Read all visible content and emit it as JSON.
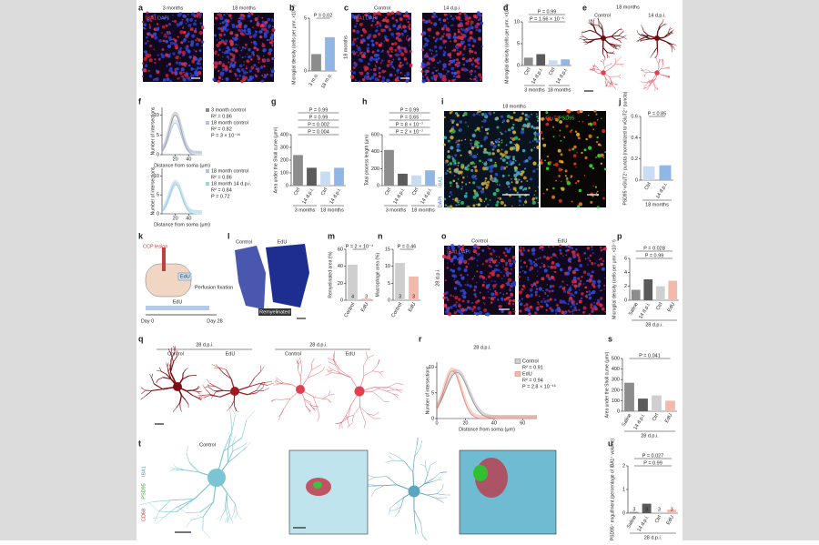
{
  "panels": {
    "a": {
      "label": "a",
      "texts": [
        "3 months",
        "18 months",
        "IBA1",
        "DAPI"
      ]
    },
    "b": {
      "label": "b",
      "ylabel": "Microglial density (cells per μm², ×10⁻³)",
      "pvalues": [
        "P = 0.02"
      ],
      "categories": [
        "3 m.o.",
        "18 m.o."
      ],
      "values": [
        1.6,
        3.2
      ],
      "colors": [
        "#8c8c8c",
        "#8fb6e4"
      ],
      "ylim": [
        0,
        5
      ],
      "yticks": [
        0,
        5
      ]
    },
    "c": {
      "label": "c",
      "texts": [
        "Control",
        "14 d.p.i.",
        "IBA1",
        "DAPI",
        "18 months"
      ]
    },
    "d": {
      "label": "d",
      "ylabel": "Microglial density (cells per μm², ×10⁻³)",
      "pvalues": [
        "P = 1.56 × 10⁻⁵",
        "P = 0.99"
      ],
      "categories": [
        "Ctrl",
        "14 d.p.i.",
        "Ctrl",
        "14 d.p.i."
      ],
      "values": [
        1.8,
        2.6,
        1.2,
        1.4
      ],
      "colors": [
        "#8c8c8c",
        "#5b5b5b",
        "#c9dcf2",
        "#8fb6e4"
      ],
      "ylim": [
        0,
        10
      ],
      "yticks": [
        0,
        5,
        10
      ],
      "groups": [
        "3 months",
        "18 months"
      ]
    },
    "e": {
      "label": "e",
      "texts": [
        "18 months",
        "Control",
        "14 d.p.i."
      ]
    },
    "f": {
      "label": "f",
      "legend_top": [
        "3 month control",
        "R² = 0.86",
        "18 month control",
        "R² = 0.82",
        "P = 3 × 10⁻¹⁶"
      ],
      "legend_bottom": [
        "18 month control",
        "R² = 0.86",
        "18 month 14 d.p.i.",
        "R² = 0.84",
        "P = 0.72"
      ],
      "ylabel": "Number of intersections",
      "xlabel": "Distance from soma (μm)",
      "xticks": [
        20,
        40
      ],
      "xlim": [
        0,
        60
      ],
      "yticks": [
        0,
        5,
        10
      ],
      "ylim": [
        0,
        12
      ]
    },
    "g": {
      "label": "g",
      "ylabel": "Area under the Sholl curve (μm²)",
      "pvalues": [
        "P = 0.004",
        "P = 0.002",
        "P = 0.99",
        "P = 0.99"
      ],
      "categories": [
        "Ctrl",
        "14 d.p.i.",
        "Ctrl",
        "14 d.p.i."
      ],
      "values": [
        240,
        140,
        110,
        140
      ],
      "colors": [
        "#8c8c8c",
        "#5b5b5b",
        "#c9dcf2",
        "#8fb6e4"
      ],
      "ylim": [
        0,
        400
      ],
      "yticks": [
        0,
        100,
        200,
        300,
        400
      ],
      "groups": [
        "3 months",
        "18 months"
      ]
    },
    "h": {
      "label": "h",
      "ylabel": "Total process length (μm)",
      "pvalues": [
        "P = 2 × 10⁻⁷",
        "P = 8 × 10⁻⁷",
        "P = 0.65",
        "P = 0.99"
      ],
      "categories": [
        "Ctrl",
        "14 d.p.i.",
        "Ctrl",
        "14 d.p.i."
      ],
      "values": [
        420,
        140,
        120,
        180
      ],
      "colors": [
        "#8c8c8c",
        "#5b5b5b",
        "#c9dcf2",
        "#8fb6e4"
      ],
      "ylim": [
        0,
        600
      ],
      "yticks": [
        0,
        200,
        400,
        600
      ],
      "groups": [
        "3 months",
        "18 months"
      ]
    },
    "i": {
      "label": "i",
      "texts": [
        "18 months",
        "vGluT2",
        "PSD95",
        "DAPI",
        "IBA1"
      ]
    },
    "j": {
      "label": "j",
      "ylabel": "PSD95⁺vGluT2⁺ puncta (normalized to vGluT2⁺ puncta)",
      "pvalues": [
        "P = 0.85"
      ],
      "categories": [
        "Ctrl",
        "14 d.p.i."
      ],
      "values": [
        0.13,
        0.14
      ],
      "colors": [
        "#c9dcf2",
        "#8fb6e4"
      ],
      "ylim": [
        0,
        0.6
      ],
      "yticks": [
        0,
        0.2,
        0.4,
        0.6
      ],
      "groups": [
        "18 months"
      ]
    },
    "k": {
      "label": "k",
      "texts": [
        "CCP lesion",
        "EdU",
        "Perfusion fixation",
        "EdU",
        "Day 0",
        "Day 28"
      ]
    },
    "l": {
      "label": "l",
      "texts": [
        "Control",
        "EdU",
        "Remyelinated"
      ]
    },
    "m": {
      "label": "m",
      "ylabel": "Remyelinated area (%)",
      "pvalues": [
        "P = 2 × 10⁻⁴"
      ],
      "categories": [
        "Control",
        "EdU"
      ],
      "values": [
        42,
        2
      ],
      "colors": [
        "#cfcfcf",
        "#f4b9ad"
      ],
      "ylim": [
        0,
        60
      ],
      "yticks": [
        0,
        20,
        40,
        60
      ],
      "n": [
        "4",
        "3"
      ]
    },
    "n": {
      "label": "n",
      "ylabel": "Macrophage area (%)",
      "pvalues": [
        "P = 0.46"
      ],
      "categories": [
        "Control",
        "EdU"
      ],
      "values": [
        11,
        7
      ],
      "colors": [
        "#cfcfcf",
        "#f4b9ad"
      ],
      "ylim": [
        0,
        15
      ],
      "yticks": [
        0,
        5,
        10,
        15
      ],
      "n": [
        "3",
        "3"
      ]
    },
    "o": {
      "label": "o",
      "texts": [
        "Control",
        "EdU",
        "IBA1",
        "DAPI",
        "28 d.p.i."
      ]
    },
    "p": {
      "label": "p",
      "ylabel": "Microglial density (cells per μm², ×10⁻³)",
      "pvalues": [
        "P = 0.99",
        "P = 0.028"
      ],
      "categories": [
        "Saline",
        "14 d.p.i.",
        "Ctrl",
        "EdU"
      ],
      "values": [
        1.5,
        3,
        2,
        2.8
      ],
      "colors": [
        "#8c8c8c",
        "#5b5b5b",
        "#cfcfcf",
        "#f4b9ad"
      ],
      "ylim": [
        0,
        6
      ],
      "yticks": [
        0,
        2,
        4,
        6
      ],
      "groups": [
        "28 d.p.i."
      ]
    },
    "q": {
      "label": "q",
      "texts": [
        "28 d.p.i.",
        "Control",
        "EdU",
        "28 d.p.i.",
        "Control",
        "EdU"
      ]
    },
    "r": {
      "label": "r",
      "title": "28 d.p.i.",
      "legend": [
        "Control",
        "R² = 0.91",
        "EdU",
        "R² = 0.94",
        "P = 2.8 × 10⁻¹⁶"
      ],
      "xlabel": "Distance from soma (μm)",
      "ylabel": "Number of intersections",
      "xticks": [
        0,
        20,
        40,
        60
      ],
      "xlim": [
        0,
        70
      ],
      "yticks": [
        0,
        5,
        10
      ],
      "ylim": [
        0,
        11
      ]
    },
    "s": {
      "label": "s",
      "ylabel": "Area under the Sholl curve (μm²)",
      "pvalues": [
        "P = 0.041"
      ],
      "categories": [
        "Saline",
        "14 d.p.i.",
        "Ctrl",
        "EdU"
      ],
      "values": [
        270,
        120,
        150,
        100
      ],
      "colors": [
        "#8c8c8c",
        "#5b5b5b",
        "#cfcfcf",
        "#f4b9ad"
      ],
      "ylim": [
        0,
        500
      ],
      "yticks": [
        0,
        100,
        200,
        300,
        400,
        500
      ],
      "groups": [
        "28 d.p.i."
      ]
    },
    "t": {
      "label": "t",
      "texts": [
        "Control",
        "CD68",
        "PSD95",
        "IBA1"
      ]
    },
    "u": {
      "label": "u",
      "ylabel": "PSD95⁺ engulfment (percentage of IBA1⁺ volume)",
      "pvalues": [
        "P = 0.99",
        "P = 0.027"
      ],
      "categories": [
        "Saline",
        "14 d.p.i.",
        "Ctrl",
        "EdU"
      ],
      "values": [
        0.05,
        0.4,
        0.05,
        0.15
      ],
      "colors": [
        "#8c8c8c",
        "#5b5b5b",
        "#cfcfcf",
        "#f4b9ad"
      ],
      "ylim": [
        0,
        2
      ],
      "yticks": [
        0,
        1,
        2
      ],
      "n": [
        "3",
        "3",
        "3",
        "3"
      ],
      "groups": [
        "28 d.p.i."
      ]
    }
  }
}
